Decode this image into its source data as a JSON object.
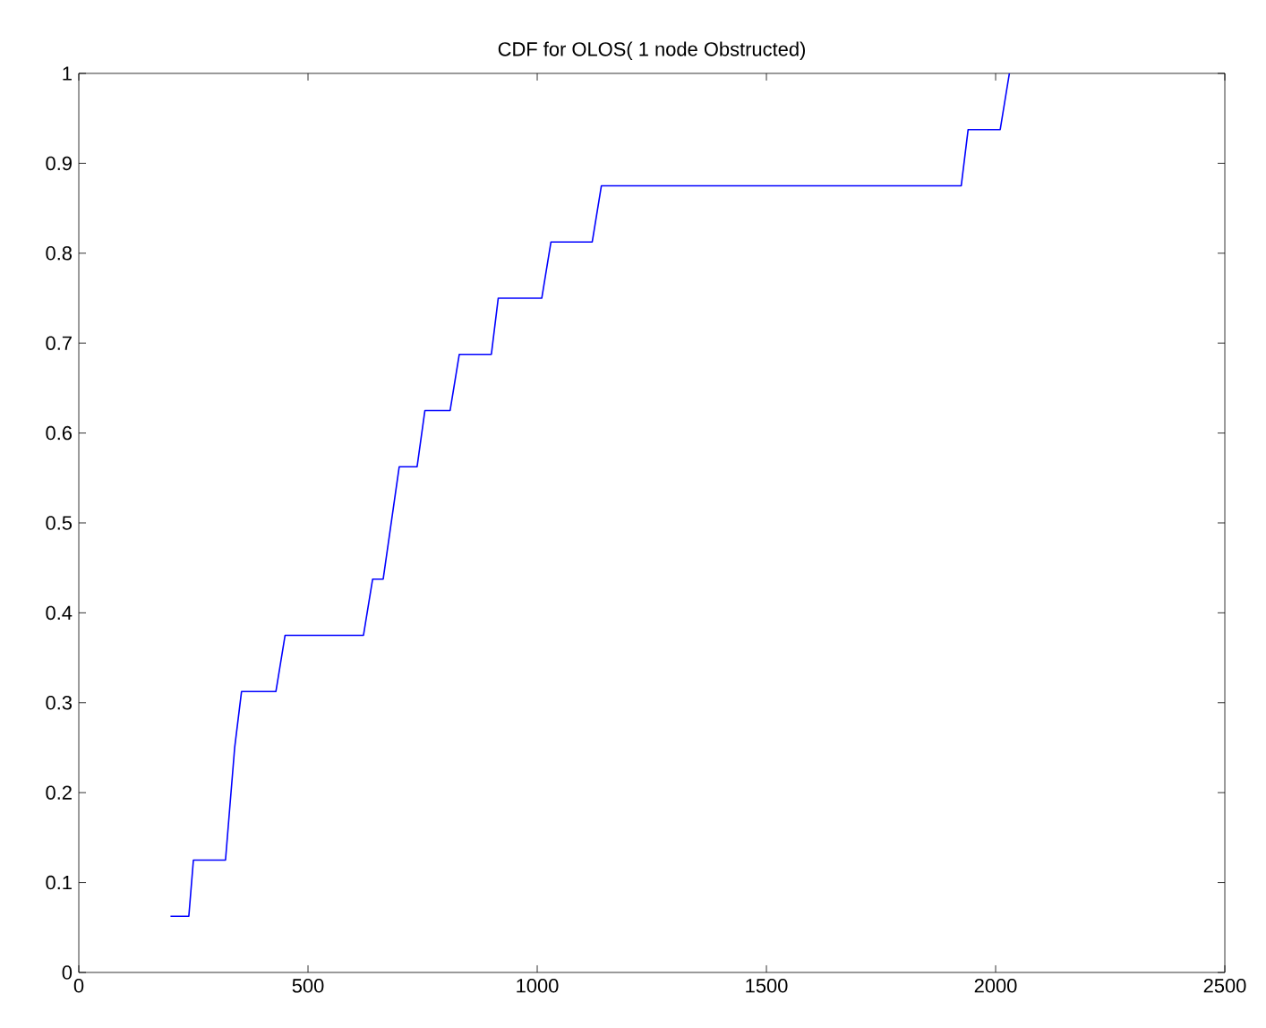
{
  "chart_data": {
    "type": "line",
    "title": "CDF for OLOS( 1 node Obstructed)",
    "series": [
      {
        "color": "#0000ff",
        "x": [
          200,
          240,
          250,
          320,
          340,
          355,
          430,
          450,
          621,
          641,
          664,
          699,
          738,
          755,
          810,
          830,
          900,
          915,
          1010,
          1030,
          1120,
          1140,
          1925,
          1940,
          2010,
          2030
        ],
        "values": [
          0.0625,
          0.0625,
          0.125,
          0.125,
          0.25,
          0.3125,
          0.3125,
          0.375,
          0.375,
          0.4375,
          0.4375,
          0.5625,
          0.5625,
          0.625,
          0.625,
          0.6875,
          0.6875,
          0.75,
          0.75,
          0.8125,
          0.8125,
          0.875,
          0.875,
          0.9375,
          0.9375,
          1
        ]
      }
    ],
    "xlim": [
      0,
      2500
    ],
    "ylim": [
      0,
      1
    ],
    "xticks": [
      0,
      500,
      1000,
      1500,
      2000,
      2500
    ],
    "yticks": [
      0,
      0.1,
      0.2,
      0.3,
      0.4,
      0.5,
      0.6,
      0.7,
      0.8,
      0.9,
      1
    ],
    "grid": false,
    "marker": "none",
    "line_style": "solid"
  }
}
